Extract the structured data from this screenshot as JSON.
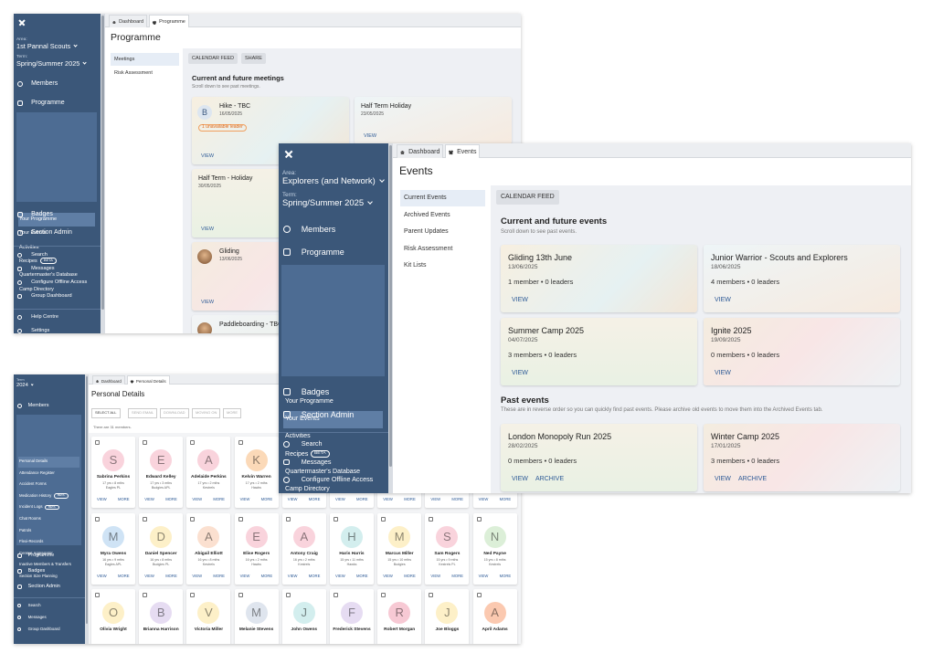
{
  "programme": {
    "sidebar": {
      "area_label": "Area:",
      "area": "1st Pannal Scouts",
      "term_label": "Term:",
      "term": "Spring/Summer 2025",
      "members": "Members",
      "programme": "Programme",
      "subnav": [
        {
          "label": "Your Programme"
        },
        {
          "label": "Your Events"
        },
        {
          "label": "Activities"
        },
        {
          "label": "Recipes",
          "badge": "BETA"
        },
        {
          "label": "Quartermaster's Database"
        },
        {
          "label": "Camp Directory"
        }
      ],
      "badges": "Badges",
      "section_admin": "Section Admin",
      "tools": [
        "Search",
        "Messages",
        "Configure Offline Access",
        "Group Dashboard"
      ],
      "help": "Help Centre",
      "settings": "Settings"
    },
    "tabs": [
      "Dashboard",
      "Programme"
    ],
    "title": "Programme",
    "menu": [
      "Meetings",
      "Risk Assessment"
    ],
    "buttons": [
      "CALENDAR FEED",
      "SHARE"
    ],
    "section_title": "Current and future meetings",
    "section_hint": "Scroll down to see past meetings.",
    "view": "VIEW",
    "meetings": [
      {
        "initial": "B",
        "title": "Hike - TBC",
        "date": "16/05/2025",
        "tag": "1 unavailable leader"
      },
      {
        "title": "Half Term Holiday",
        "date": "23/05/2025"
      },
      {
        "title": "Half Term - Holiday",
        "date": "30/05/2025"
      },
      {
        "title": "Gliding",
        "date": "13/06/2025"
      },
      {
        "title": "Paddleboarding - TBC"
      }
    ]
  },
  "personal_details": {
    "sidebar": {
      "term_label": "Term",
      "term": "2024",
      "members": "Members",
      "subnav": [
        {
          "label": "Personal Details"
        },
        {
          "label": "Attendance Register"
        },
        {
          "label": "Accident Forms"
        },
        {
          "label": "Medication History",
          "badge": "BETA"
        },
        {
          "label": "Incident Logs",
          "badge": "BETA"
        },
        {
          "label": "Chat Rooms"
        },
        {
          "label": "Patrols"
        },
        {
          "label": "Flexi-Records"
        },
        {
          "label": "Census Aggregator"
        },
        {
          "label": "Inactive Members & Transfers"
        },
        {
          "label": "Section Size Planning"
        }
      ],
      "programme": "Programme",
      "badges": "Badges",
      "section_admin": "Section Admin",
      "tools": [
        "Search",
        "Messages",
        "Group Dashboard"
      ]
    },
    "tabs": [
      "Dashboard",
      "Personal Details"
    ],
    "title": "Personal Details",
    "toolbar": [
      "SELECT ALL",
      "SEND EMAIL",
      "DOWNLOAD",
      "MOVING ON",
      "MORE"
    ],
    "count": "There are 31 members.",
    "actions": [
      "VIEW",
      "MORE"
    ],
    "rows": [
      [
        {
          "initial": "S",
          "name": "Sabrina Perkins",
          "age": "17 yrs • 8 mths",
          "patrol": "Eagles PL",
          "color": "#f9d3dc"
        },
        {
          "initial": "E",
          "name": "Edward Kelley",
          "age": "17 yrs • 3 mths",
          "patrol": "Budgies APL",
          "color": "#f9d3dc"
        },
        {
          "initial": "A",
          "name": "Adelaide Perkins",
          "age": "17 yrs • 2 mths",
          "patrol": "Kestrels",
          "color": "#f9d3dc"
        },
        {
          "initial": "K",
          "name": "Kelvin Warren",
          "age": "17 yrs • 2 mths",
          "patrol": "Hawks",
          "color": "#fbd9b8"
        }
      ],
      [
        {
          "initial": "M",
          "name": "Myra Owens",
          "age": "16 yrs • 9 mths",
          "patrol": "Eagles APL",
          "color": "#cfe3f5"
        },
        {
          "initial": "D",
          "name": "Daniel Spencer",
          "age": "16 yrs • 8 mths",
          "patrol": "Budgies PL",
          "color": "#fdf0c8"
        },
        {
          "initial": "A",
          "name": "Abigail Elliott",
          "age": "16 yrs • 8 mths",
          "patrol": "Kestrels",
          "color": "#fbe0d0"
        },
        {
          "initial": "E",
          "name": "Elise Rogers",
          "age": "16 yrs • 2 mths",
          "patrol": "Hawks",
          "color": "#f9d3dc"
        },
        {
          "initial": "A",
          "name": "Antony Craig",
          "age": "16 yrs • 2 mths",
          "patrol": "Kestrels",
          "color": "#f9d3dc"
        },
        {
          "initial": "H",
          "name": "Haris Harris",
          "age": "15 yrs • 11 mths",
          "patrol": "Hawks",
          "color": "#d3eeee"
        },
        {
          "initial": "M",
          "name": "Marcus Miller",
          "age": "15 yrs • 10 mths",
          "patrol": "Budgies",
          "color": "#fdf0c8"
        },
        {
          "initial": "S",
          "name": "Sam Rogers",
          "age": "15 yrs • 9 mths",
          "patrol": "Kestrels PL",
          "color": "#f9d3dc"
        },
        {
          "initial": "N",
          "name": "Ned Payne",
          "age": "15 yrs • 8 mths",
          "patrol": "Kestrels",
          "color": "#dcefd8"
        }
      ],
      [
        {
          "initial": "O",
          "name": "Olivia Wright",
          "color": "#fdf0c8"
        },
        {
          "initial": "B",
          "name": "Brianna Harrison",
          "color": "#e6dcf2"
        },
        {
          "initial": "V",
          "name": "Victoria Miller",
          "color": "#fdf0c8"
        },
        {
          "initial": "M",
          "name": "Melanie Stevens",
          "color": "#dfe5ee"
        },
        {
          "initial": "J",
          "name": "John Owens",
          "color": "#d3eeee"
        },
        {
          "initial": "F",
          "name": "Frederick Stevens",
          "color": "#e6dcf2"
        },
        {
          "initial": "R",
          "name": "Robert Morgan",
          "color": "#f7c9d4"
        },
        {
          "initial": "J",
          "name": "Joe Bloggs",
          "color": "#fdf0c8"
        },
        {
          "initial": "A",
          "name": "April Adams",
          "color": "#fbc9b0"
        }
      ]
    ]
  },
  "events": {
    "sidebar": {
      "area_label": "Area:",
      "area": "Explorers (and Network)",
      "term_label": "Term:",
      "term": "Spring/Summer 2025",
      "members": "Members",
      "programme": "Programme",
      "subnav": [
        {
          "label": "Your Programme"
        },
        {
          "label": "Your Events"
        },
        {
          "label": "Activities"
        },
        {
          "label": "Recipes",
          "badge": "BETA"
        },
        {
          "label": "Quartermaster's Database"
        },
        {
          "label": "Camp Directory"
        }
      ],
      "badges": "Badges",
      "section_admin": "Section Admin",
      "tools": [
        "Search",
        "Messages",
        "Configure Offline Access"
      ]
    },
    "tabs": [
      "Dashboard",
      "Events"
    ],
    "title": "Events",
    "menu": [
      "Current Events",
      "Archived Events",
      "Parent Updates",
      "Risk Assessment",
      "Kit Lists"
    ],
    "button": "CALENDAR FEED",
    "current_title": "Current and future events",
    "current_hint": "Scroll down to see past events.",
    "past_title": "Past events",
    "past_hint": "These are in reverse order so you can quickly find past events. Please archive old events to move them into the Archived Events tab.",
    "view": "VIEW",
    "archive": "ARCHIVE",
    "current": [
      {
        "title": "Gliding 13th June",
        "date": "13/06/2025",
        "count": "1 member • 0 leaders"
      },
      {
        "title": "Junior Warrior - Scouts and Explorers",
        "date": "18/06/2025",
        "count": "4 members • 0 leaders"
      },
      {
        "title": "Summer Camp 2025",
        "date": "04/07/2025",
        "count": "3 members • 0 leaders"
      },
      {
        "title": "Ignite 2025",
        "date": "19/09/2025",
        "count": "0 members • 0 leaders"
      }
    ],
    "past": [
      {
        "title": "London Monopoly Run 2025",
        "date": "28/02/2025",
        "count": "0 members • 0 leaders"
      },
      {
        "title": "Winter Camp 2025",
        "date": "17/01/2025",
        "count": "3 members • 0 leaders"
      }
    ]
  }
}
